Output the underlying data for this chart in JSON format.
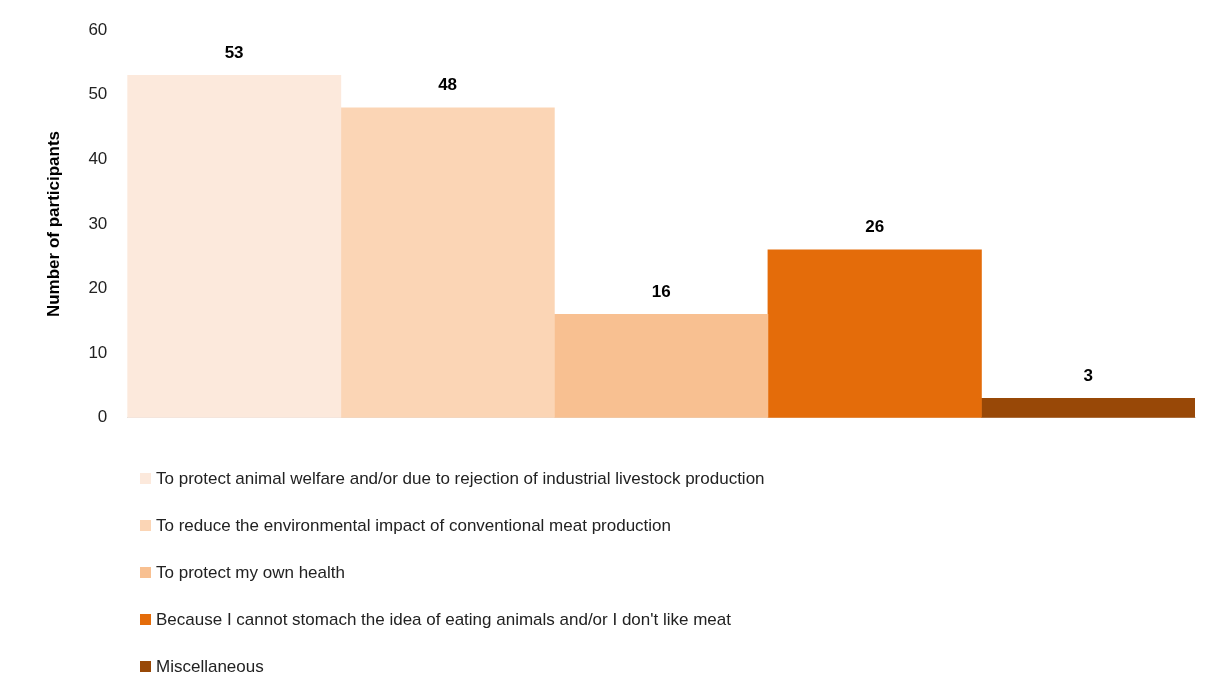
{
  "chart_data": {
    "type": "bar",
    "ylabel": "Number of participants",
    "categories": [
      null
    ],
    "series": [
      {
        "name": "To protect animal welfare and/or due to rejection of industrial livestock production",
        "color": "#fce9dc",
        "values": [
          53
        ]
      },
      {
        "name": "To reduce the environmental impact of conventional meat production",
        "color": "#fbd5b5",
        "values": [
          48
        ]
      },
      {
        "name": "To protect my own health",
        "color": "#f8c091",
        "values": [
          16
        ]
      },
      {
        "name": "Because I cannot stomach the idea of eating animals and/or I don't like meat",
        "color": "#e46c0a",
        "values": [
          26
        ]
      },
      {
        "name": "Miscellaneous",
        "color": "#984807",
        "values": [
          3
        ]
      }
    ],
    "ylim": [
      0,
      60
    ],
    "yticks": [
      0,
      10,
      20,
      30,
      40,
      50,
      60
    ],
    "grid": false,
    "data_labels": true,
    "legend": "bottom"
  }
}
